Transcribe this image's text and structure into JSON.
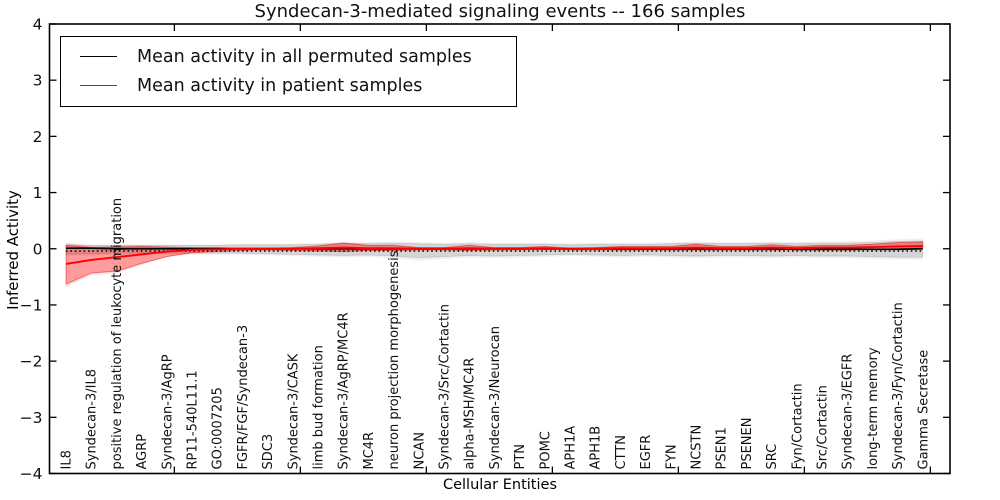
{
  "title": "Syndecan-3-mediated signaling events -- 166 samples",
  "legend": {
    "items": [
      {
        "label": "Mean activity in all permuted samples",
        "color": "#000000"
      },
      {
        "label": "Mean activity in patient samples",
        "color": "#ff0000"
      }
    ]
  },
  "axes": {
    "x_label": "Cellular Entities",
    "y_label": "Inferred Activity",
    "y_tick_values": [
      -4,
      -3,
      -2,
      -1,
      0,
      1,
      2,
      3,
      4
    ],
    "y_tick_labels": [
      "−4",
      "−3",
      "−2",
      "−1",
      "0",
      "1",
      "2",
      "3",
      "4"
    ]
  },
  "chart_data": {
    "type": "line",
    "title": "Syndecan-3-mediated signaling events -- 166 samples",
    "xlabel": "Cellular Entities",
    "ylabel": "Inferred Activity",
    "ylim": [
      -4,
      4
    ],
    "grid": false,
    "legend_position": "upper left",
    "categories": [
      "IL8",
      "Syndecan-3/IL8",
      "positive regulation of leukocyte migration",
      "AGRP",
      "Syndecan-3/AgRP",
      "RP11-540L11.1",
      "GO:0007205",
      "FGFR/FGF/Syndecan-3",
      "SDC3",
      "Syndecan-3/CASK",
      "limb bud formation",
      "Syndecan-3/AgRP/MC4R",
      "MC4R",
      "neuron projection morphogenesis",
      "NCAN",
      "Syndecan-3/Src/Cortactin",
      "alpha-MSH/MC4R",
      "Syndecan-3/Neurocan",
      "PTN",
      "POMC",
      "APH1A",
      "APH1B",
      "CTTN",
      "EGFR",
      "FYN",
      "NCSTN",
      "PSEN1",
      "PSENEN",
      "SRC",
      "Fyn/Cortactin",
      "Src/Cortactin",
      "Syndecan-3/EGFR",
      "long-term memory",
      "Syndecan-3/Fyn/Cortactin",
      "Gamma Secretase"
    ],
    "series": [
      {
        "name": "Mean activity in all permuted samples",
        "color": "#000000",
        "style": "solid",
        "band_fill": "rgba(0,0,0,0.11)",
        "values": [
          0.01,
          0.01,
          0.0,
          0.0,
          0.0,
          0.0,
          0.0,
          0.0,
          0.0,
          0.0,
          0.0,
          0.0,
          0.0,
          0.0,
          0.0,
          0.0,
          0.0,
          0.0,
          0.0,
          0.0,
          0.0,
          0.0,
          0.0,
          0.0,
          0.0,
          0.0,
          0.0,
          0.0,
          0.0,
          -0.01,
          -0.01,
          -0.01,
          -0.01,
          -0.01,
          0.0
        ],
        "band_upper": [
          0.07,
          0.06,
          0.06,
          0.06,
          0.06,
          0.06,
          0.06,
          0.07,
          0.07,
          0.07,
          0.08,
          0.1,
          0.09,
          0.1,
          0.09,
          0.08,
          0.09,
          0.08,
          0.08,
          0.08,
          0.07,
          0.08,
          0.08,
          0.08,
          0.09,
          0.1,
          0.09,
          0.09,
          0.1,
          0.09,
          0.1,
          0.1,
          0.11,
          0.13,
          0.14
        ],
        "band_lower": [
          -0.1,
          -0.09,
          -0.08,
          -0.08,
          -0.08,
          -0.08,
          -0.08,
          -0.08,
          -0.09,
          -0.1,
          -0.11,
          -0.12,
          -0.11,
          -0.13,
          -0.16,
          -0.14,
          -0.12,
          -0.13,
          -0.12,
          -0.11,
          -0.1,
          -0.11,
          -0.12,
          -0.11,
          -0.12,
          -0.13,
          -0.12,
          -0.12,
          -0.13,
          -0.12,
          -0.13,
          -0.13,
          -0.14,
          -0.15,
          -0.15
        ]
      },
      {
        "name": "Mean activity in patient samples",
        "color": "#ff0000",
        "style": "solid",
        "band_fill": "rgba(255,0,0,0.30)",
        "values": [
          -0.27,
          -0.2,
          -0.15,
          -0.1,
          -0.05,
          -0.02,
          -0.01,
          0.0,
          0.0,
          0.0,
          0.01,
          0.02,
          0.01,
          0.01,
          0.0,
          0.0,
          0.01,
          0.0,
          0.0,
          0.01,
          0.0,
          0.0,
          0.01,
          0.01,
          0.01,
          0.02,
          0.01,
          0.01,
          0.02,
          0.01,
          0.02,
          0.02,
          0.03,
          0.04,
          0.05
        ],
        "band_upper": [
          0.06,
          0.02,
          0.03,
          0.04,
          0.03,
          0.02,
          0.02,
          0.01,
          0.01,
          0.02,
          0.05,
          0.1,
          0.06,
          0.06,
          0.02,
          0.02,
          0.06,
          0.02,
          0.02,
          0.04,
          0.01,
          0.02,
          0.04,
          0.04,
          0.04,
          0.08,
          0.04,
          0.04,
          0.07,
          0.04,
          0.06,
          0.06,
          0.08,
          0.11,
          0.12
        ],
        "band_lower": [
          -0.63,
          -0.43,
          -0.4,
          -0.26,
          -0.14,
          -0.07,
          -0.05,
          -0.03,
          -0.02,
          -0.03,
          -0.04,
          -0.05,
          -0.03,
          -0.03,
          -0.02,
          -0.02,
          -0.03,
          -0.02,
          -0.02,
          -0.01,
          -0.02,
          -0.02,
          -0.02,
          -0.02,
          -0.02,
          -0.02,
          -0.02,
          -0.02,
          -0.02,
          -0.02,
          -0.02,
          -0.02,
          -0.01,
          0.0,
          0.02
        ]
      },
      {
        "name": "dotted-guide",
        "color": "#000000",
        "style": "dotted",
        "values": [
          -0.04,
          -0.04,
          -0.04,
          -0.04,
          -0.04,
          -0.04,
          -0.04,
          -0.04,
          -0.04,
          -0.04,
          -0.04,
          -0.04,
          -0.04,
          -0.04,
          -0.04,
          -0.04,
          -0.04,
          -0.04,
          -0.04,
          -0.04,
          -0.04,
          -0.04,
          -0.04,
          -0.04,
          -0.04,
          -0.04,
          -0.04,
          -0.04,
          -0.04,
          -0.04,
          -0.04,
          -0.04,
          -0.04,
          -0.04,
          -0.04
        ]
      }
    ]
  }
}
